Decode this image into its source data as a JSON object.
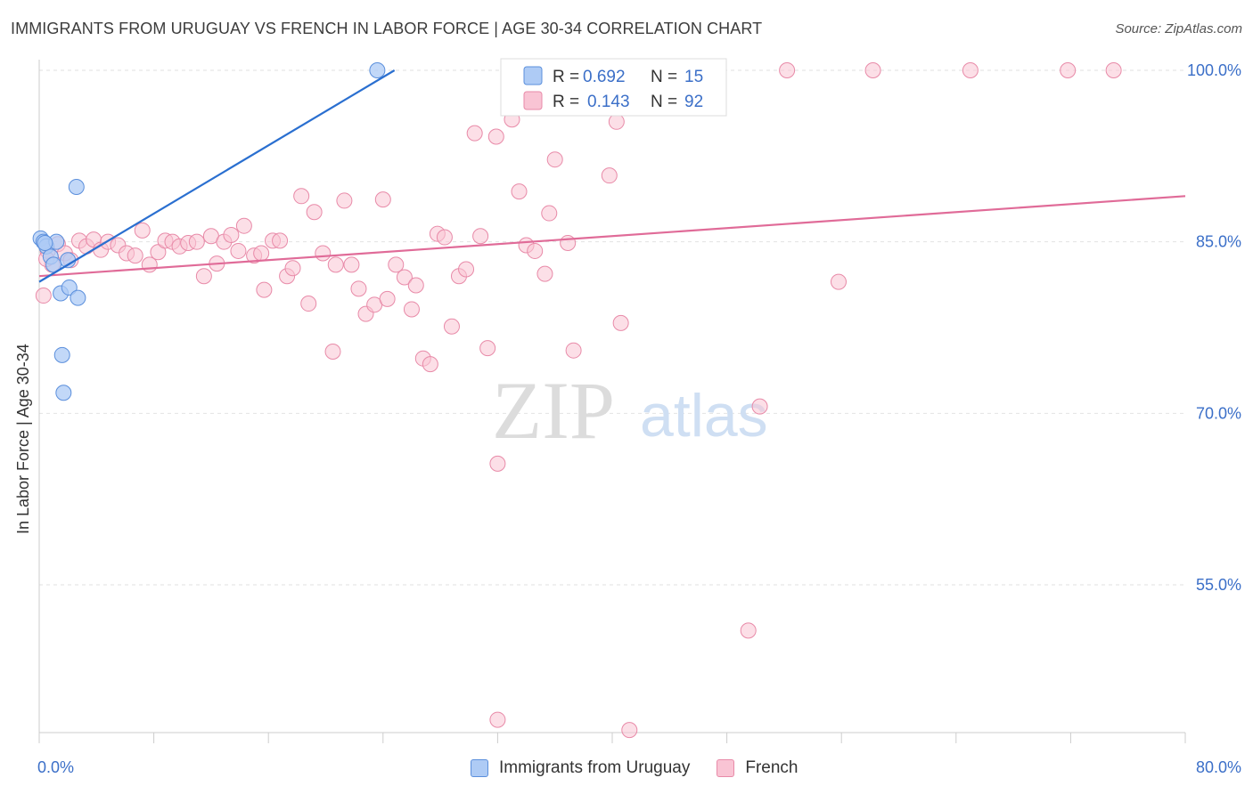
{
  "title": "IMMIGRANTS FROM URUGUAY VS FRENCH IN LABOR FORCE | AGE 30-34 CORRELATION CHART",
  "source": "Source: ZipAtlas.com",
  "watermark": {
    "zip": "ZIP",
    "atlas": "atlas"
  },
  "colors": {
    "uruguay_fill": "#aecbf5",
    "uruguay_stroke": "#5b8fdc",
    "uruguay_line": "#2a6fd0",
    "french_fill": "#f9c4d4",
    "french_stroke": "#e88aa8",
    "french_line": "#e06b98",
    "value_text": "#3b6fc8"
  },
  "legend_top": {
    "rows": [
      {
        "r_label": "R =",
        "r_value": "0.692",
        "n_label": "N =",
        "n_value": "15"
      },
      {
        "r_label": "R =",
        "r_value": "0.143",
        "n_label": "N =",
        "n_value": "92"
      }
    ]
  },
  "legend_bottom": {
    "items": [
      {
        "label": "Immigrants from Uruguay"
      },
      {
        "label": "French"
      }
    ]
  },
  "chart_data": {
    "type": "scatter",
    "title": "IMMIGRANTS FROM URUGUAY VS FRENCH IN LABOR FORCE | AGE 30-34 CORRELATION CHART",
    "xlabel": "",
    "ylabel": "In Labor Force | Age 30-34",
    "xlim": [
      0,
      80
    ],
    "ylim": [
      40,
      102
    ],
    "x_tick_labels": [
      "0.0%",
      "80.0%"
    ],
    "y_ticks": [
      55,
      70,
      85,
      100
    ],
    "y_tick_labels": [
      "55.0%",
      "70.0%",
      "85.0%",
      "100.0%"
    ],
    "grid": true,
    "legend_position": "top-center",
    "series": [
      {
        "name": "Immigrants from Uruguay",
        "R": 0.692,
        "N": 15,
        "trend": {
          "x": [
            0,
            24.8
          ],
          "y": [
            81.5,
            100.0
          ]
        },
        "points": [
          [
            0.1,
            85.3
          ],
          [
            0.3,
            85.0
          ],
          [
            0.5,
            84.6
          ],
          [
            0.8,
            83.7
          ],
          [
            1.0,
            83.0
          ],
          [
            1.2,
            85.0
          ],
          [
            1.5,
            80.5
          ],
          [
            1.6,
            75.1
          ],
          [
            1.7,
            71.8
          ],
          [
            2.0,
            83.4
          ],
          [
            2.1,
            81.0
          ],
          [
            2.7,
            80.1
          ],
          [
            2.6,
            89.8
          ],
          [
            23.6,
            100.0
          ],
          [
            0.4,
            84.9
          ]
        ]
      },
      {
        "name": "French",
        "R": 0.143,
        "N": 92,
        "trend": {
          "x": [
            0,
            80
          ],
          "y": [
            82.0,
            89.0
          ]
        },
        "points": [
          [
            0.3,
            80.3
          ],
          [
            0.6,
            84.2
          ],
          [
            0.9,
            83.0
          ],
          [
            1.3,
            84.8
          ],
          [
            1.8,
            84.0
          ],
          [
            2.2,
            83.4
          ],
          [
            2.8,
            85.1
          ],
          [
            3.3,
            84.6
          ],
          [
            3.8,
            85.2
          ],
          [
            4.3,
            84.3
          ],
          [
            4.8,
            85.0
          ],
          [
            5.5,
            84.7
          ],
          [
            6.1,
            84.0
          ],
          [
            6.7,
            83.8
          ],
          [
            7.2,
            86.0
          ],
          [
            7.7,
            83.0
          ],
          [
            8.3,
            84.1
          ],
          [
            8.8,
            85.1
          ],
          [
            9.3,
            85.0
          ],
          [
            9.8,
            84.6
          ],
          [
            10.4,
            84.9
          ],
          [
            11.0,
            85.0
          ],
          [
            11.5,
            82.0
          ],
          [
            12.0,
            85.5
          ],
          [
            12.4,
            83.1
          ],
          [
            12.9,
            85.0
          ],
          [
            13.4,
            85.6
          ],
          [
            13.9,
            84.2
          ],
          [
            14.3,
            86.4
          ],
          [
            15.0,
            83.8
          ],
          [
            15.5,
            84.0
          ],
          [
            15.7,
            80.8
          ],
          [
            16.3,
            85.1
          ],
          [
            16.8,
            85.1
          ],
          [
            17.3,
            82.0
          ],
          [
            17.7,
            82.7
          ],
          [
            18.3,
            89.0
          ],
          [
            18.8,
            79.6
          ],
          [
            19.2,
            87.6
          ],
          [
            19.8,
            84.0
          ],
          [
            20.5,
            75.4
          ],
          [
            20.7,
            83.0
          ],
          [
            21.3,
            88.6
          ],
          [
            21.8,
            83.0
          ],
          [
            22.3,
            80.9
          ],
          [
            22.8,
            78.7
          ],
          [
            23.4,
            79.5
          ],
          [
            24.0,
            88.7
          ],
          [
            24.3,
            80.0
          ],
          [
            24.9,
            83.0
          ],
          [
            25.5,
            81.9
          ],
          [
            26.0,
            79.1
          ],
          [
            26.3,
            81.2
          ],
          [
            26.8,
            74.8
          ],
          [
            27.3,
            74.3
          ],
          [
            27.8,
            85.7
          ],
          [
            28.3,
            85.4
          ],
          [
            28.8,
            77.6
          ],
          [
            29.3,
            82.0
          ],
          [
            29.8,
            82.6
          ],
          [
            30.4,
            94.5
          ],
          [
            30.8,
            85.5
          ],
          [
            31.3,
            75.7
          ],
          [
            32.0,
            65.6
          ],
          [
            31.9,
            94.2
          ],
          [
            33.0,
            95.7
          ],
          [
            33.5,
            89.4
          ],
          [
            34.0,
            84.7
          ],
          [
            34.6,
            84.2
          ],
          [
            35.3,
            82.2
          ],
          [
            35.6,
            87.5
          ],
          [
            36.0,
            92.2
          ],
          [
            36.9,
            84.9
          ],
          [
            37.3,
            75.5
          ],
          [
            38.0,
            100.0
          ],
          [
            39.8,
            90.8
          ],
          [
            40.3,
            95.5
          ],
          [
            40.6,
            77.9
          ],
          [
            41.8,
            100.0
          ],
          [
            49.5,
            51.0
          ],
          [
            50.3,
            70.6
          ],
          [
            52.2,
            100.0
          ],
          [
            55.8,
            81.5
          ],
          [
            58.2,
            100.0
          ],
          [
            65.0,
            100.0
          ],
          [
            71.8,
            100.0
          ],
          [
            75.0,
            100.0
          ],
          [
            32.0,
            43.2
          ],
          [
            41.2,
            42.3
          ],
          [
            38.5,
            100.0
          ],
          [
            42.0,
            100.0
          ],
          [
            0.5,
            83.5
          ]
        ]
      }
    ]
  }
}
